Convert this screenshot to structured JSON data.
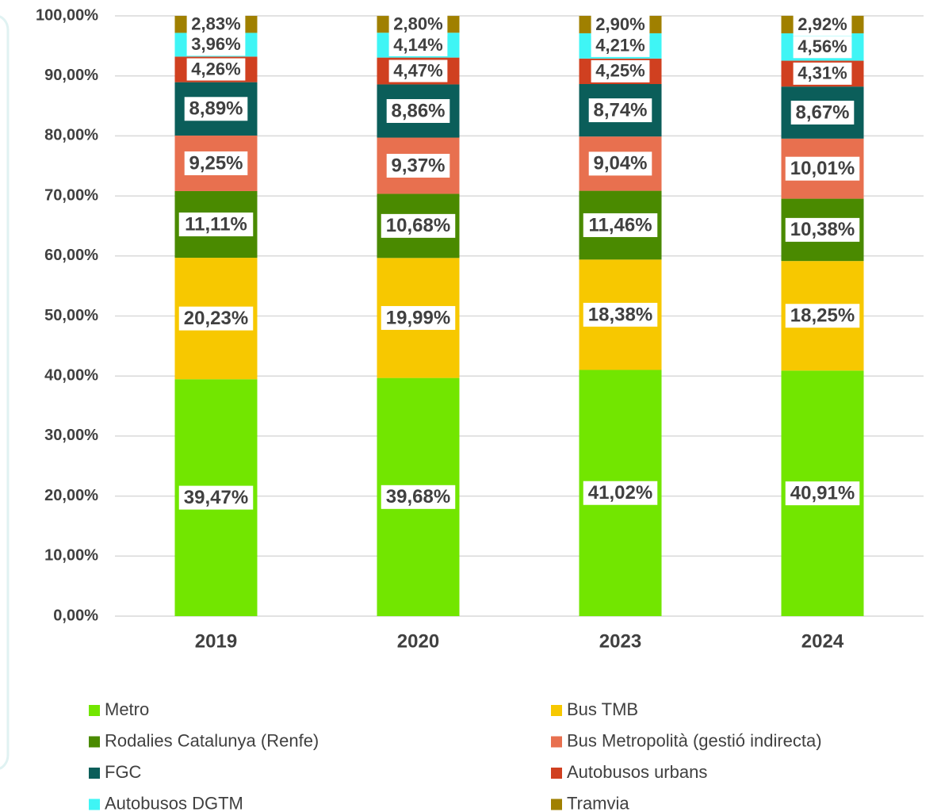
{
  "chart_data": {
    "type": "stacked_bar",
    "categories": [
      "2019",
      "2020",
      "2023",
      "2024"
    ],
    "series": [
      {
        "name": "Metro",
        "color": "#72e600",
        "values": [
          39.47,
          39.68,
          41.02,
          40.91
        ],
        "value_labels": [
          "39,47%",
          "39,68%",
          "41,02%",
          "40,91%"
        ]
      },
      {
        "name": "Bus TMB",
        "color": "#f7c800",
        "values": [
          20.23,
          19.99,
          18.38,
          18.25
        ],
        "value_labels": [
          "20,23%",
          "19,99%",
          "18,38%",
          "18,25%"
        ]
      },
      {
        "name": "Rodalies Catalunya (Renfe)",
        "color": "#4a8a00",
        "values": [
          11.11,
          10.68,
          11.46,
          10.38
        ],
        "value_labels": [
          "11,11%",
          "10,68%",
          "11,46%",
          "10,38%"
        ]
      },
      {
        "name": "Bus Metropolità (gestió indirecta)",
        "color": "#e8704f",
        "values": [
          9.25,
          9.37,
          9.04,
          10.01
        ],
        "value_labels": [
          "9,25%",
          "9,37%",
          "9,04%",
          "10,01%"
        ]
      },
      {
        "name": "FGC",
        "color": "#0b5e5a",
        "values": [
          8.89,
          8.86,
          8.74,
          8.67
        ],
        "value_labels": [
          "8,89%",
          "8,86%",
          "8,74%",
          "8,67%"
        ]
      },
      {
        "name": "Autobusos urbans",
        "color": "#d04020",
        "values": [
          4.26,
          4.47,
          4.25,
          4.31
        ],
        "value_labels": [
          "4,26%",
          "4,47%",
          "4,25%",
          "4,31%"
        ]
      },
      {
        "name": "Autobusos DGTM",
        "color": "#3ff5f5",
        "values": [
          3.96,
          4.14,
          4.21,
          4.56
        ],
        "value_labels": [
          "3,96%",
          "4,14%",
          "4,21%",
          "4,56%"
        ]
      },
      {
        "name": "Tramvia",
        "color": "#a08000",
        "values": [
          2.83,
          2.8,
          2.9,
          2.92
        ],
        "value_labels": [
          "2,83%",
          "2,80%",
          "2,90%",
          "2,92%"
        ]
      }
    ],
    "ylim": [
      0,
      100
    ],
    "yticks": [
      {
        "value": 0,
        "label": "0,00%"
      },
      {
        "value": 10,
        "label": "10,00%"
      },
      {
        "value": 20,
        "label": "20,00%"
      },
      {
        "value": 30,
        "label": "30,00%"
      },
      {
        "value": 40,
        "label": "40,00%"
      },
      {
        "value": 50,
        "label": "50,00%"
      },
      {
        "value": 60,
        "label": "60,00%"
      },
      {
        "value": 70,
        "label": "70,00%"
      },
      {
        "value": 80,
        "label": "80,00%"
      },
      {
        "value": 90,
        "label": "90,00%"
      },
      {
        "value": 100,
        "label": "100,00%"
      }
    ],
    "grid": true,
    "legend": "bottom"
  }
}
